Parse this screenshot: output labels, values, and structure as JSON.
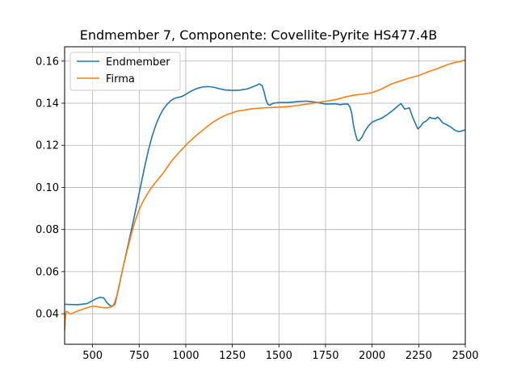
{
  "chart_data": {
    "type": "line",
    "title": "Endmember 7, Componente: Covellite-Pyrite HS477.4B",
    "xlabel": "",
    "ylabel": "",
    "xlim": [
      350,
      2500
    ],
    "ylim": [
      0.0255,
      0.1668
    ],
    "x_ticks": [
      500,
      750,
      1000,
      1250,
      1500,
      1750,
      2000,
      2250,
      2500
    ],
    "y_ticks": [
      0.04,
      0.06,
      0.08,
      0.1,
      0.12,
      0.14,
      0.16
    ],
    "x_tick_labels": [
      "500",
      "750",
      "1000",
      "1250",
      "1500",
      "1750",
      "2000",
      "2250",
      "2500"
    ],
    "y_tick_labels": [
      "0.04",
      "0.06",
      "0.08",
      "0.10",
      "0.12",
      "0.14",
      "0.16"
    ],
    "grid": true,
    "legend_position": "upper-left",
    "series": [
      {
        "name": "Endmember",
        "color": "#1f77b4",
        "x": [
          350,
          380,
          420,
          470,
          500,
          520,
          540,
          560,
          575,
          590,
          605,
          620,
          640,
          660,
          680,
          700,
          720,
          740,
          760,
          780,
          800,
          820,
          840,
          860,
          880,
          900,
          920,
          940,
          960,
          980,
          1000,
          1030,
          1060,
          1090,
          1120,
          1150,
          1180,
          1210,
          1250,
          1290,
          1330,
          1360,
          1380,
          1395,
          1410,
          1420,
          1430,
          1440,
          1450,
          1470,
          1500,
          1550,
          1600,
          1650,
          1700,
          1750,
          1800,
          1830,
          1850,
          1870,
          1880,
          1890,
          1900,
          1910,
          1920,
          1930,
          1945,
          1960,
          1980,
          2000,
          2020,
          2050,
          2080,
          2110,
          2140,
          2155,
          2165,
          2175,
          2185,
          2200,
          2210,
          2220,
          2230,
          2245,
          2260,
          2275,
          2290,
          2310,
          2320,
          2330,
          2340,
          2350,
          2360,
          2370,
          2380,
          2390,
          2400,
          2420,
          2440,
          2460,
          2470,
          2480,
          2490,
          2500
        ],
        "y": [
          0.0445,
          0.0444,
          0.0443,
          0.0448,
          0.0462,
          0.0472,
          0.0478,
          0.0475,
          0.0455,
          0.0441,
          0.0435,
          0.0445,
          0.052,
          0.0605,
          0.0685,
          0.0765,
          0.0845,
          0.093,
          0.1015,
          0.11,
          0.1178,
          0.1245,
          0.1298,
          0.134,
          0.1372,
          0.1395,
          0.1412,
          0.1423,
          0.1428,
          0.1432,
          0.1442,
          0.1458,
          0.147,
          0.1477,
          0.1479,
          0.1476,
          0.1469,
          0.1463,
          0.1461,
          0.1462,
          0.1468,
          0.1478,
          0.1485,
          0.1492,
          0.1483,
          0.1455,
          0.1418,
          0.1396,
          0.139,
          0.14,
          0.1403,
          0.1403,
          0.1408,
          0.141,
          0.1404,
          0.1396,
          0.1397,
          0.1393,
          0.1396,
          0.1396,
          0.1384,
          0.1355,
          0.1295,
          0.1255,
          0.1225,
          0.1222,
          0.1238,
          0.1265,
          0.1292,
          0.131,
          0.1318,
          0.1328,
          0.1345,
          0.1365,
          0.1388,
          0.1398,
          0.1385,
          0.1372,
          0.1374,
          0.1378,
          0.1352,
          0.1328,
          0.1308,
          0.1278,
          0.129,
          0.1308,
          0.1315,
          0.1333,
          0.1329,
          0.1328,
          0.1326,
          0.1334,
          0.1328,
          0.1316,
          0.1306,
          0.1302,
          0.1298,
          0.1288,
          0.1274,
          0.1266,
          0.1265,
          0.1268,
          0.1271,
          0.1273
        ]
      },
      {
        "name": "Firma",
        "color": "#ff7f0e",
        "x": [
          350,
          355,
          360,
          365,
          375,
          385,
          400,
          420,
          440,
          460,
          480,
          500,
          520,
          540,
          560,
          580,
          600,
          615,
          630,
          650,
          670,
          690,
          710,
          730,
          750,
          770,
          790,
          810,
          830,
          850,
          870,
          890,
          910,
          930,
          950,
          970,
          990,
          1010,
          1030,
          1050,
          1075,
          1100,
          1125,
          1150,
          1175,
          1200,
          1225,
          1250,
          1275,
          1300,
          1325,
          1350,
          1400,
          1450,
          1500,
          1550,
          1600,
          1650,
          1700,
          1750,
          1800,
          1850,
          1900,
          1950,
          2000,
          2050,
          2100,
          2150,
          2200,
          2250,
          2300,
          2350,
          2400,
          2450,
          2475,
          2485,
          2490,
          2500
        ],
        "y": [
          0.032,
          0.0395,
          0.0412,
          0.0409,
          0.0402,
          0.0399,
          0.0405,
          0.0413,
          0.0419,
          0.0425,
          0.0431,
          0.0436,
          0.0435,
          0.0431,
          0.0429,
          0.0428,
          0.0432,
          0.0445,
          0.0485,
          0.0565,
          0.0645,
          0.0715,
          0.0785,
          0.0845,
          0.0895,
          0.0932,
          0.0963,
          0.0992,
          0.1015,
          0.1037,
          0.1058,
          0.1082,
          0.1108,
          0.1132,
          0.1152,
          0.1172,
          0.119,
          0.121,
          0.1225,
          0.1242,
          0.126,
          0.1278,
          0.1296,
          0.1312,
          0.1325,
          0.1337,
          0.1347,
          0.1354,
          0.1362,
          0.1365,
          0.1369,
          0.1373,
          0.1377,
          0.1379,
          0.1381,
          0.1384,
          0.1389,
          0.1396,
          0.1402,
          0.1409,
          0.1416,
          0.1428,
          0.1438,
          0.1443,
          0.145,
          0.1467,
          0.149,
          0.1505,
          0.1519,
          0.1531,
          0.1549,
          0.1564,
          0.1582,
          0.1595,
          0.1597,
          0.1603,
          0.1604,
          0.1602
        ]
      }
    ]
  }
}
